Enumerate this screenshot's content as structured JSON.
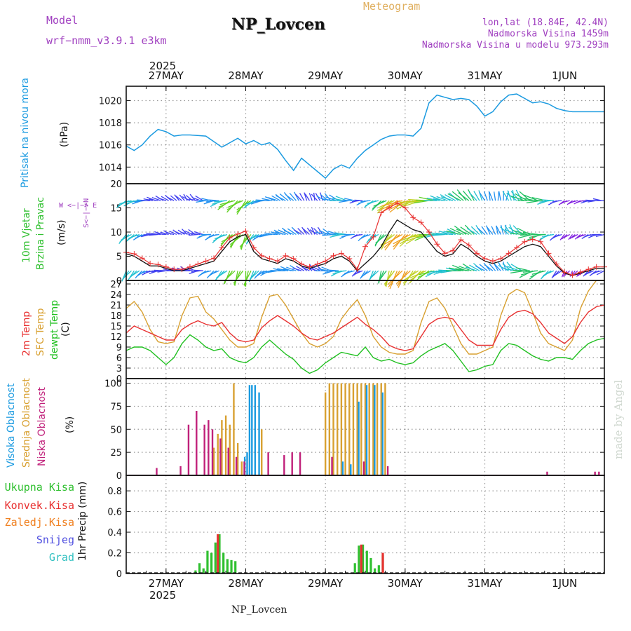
{
  "header": {
    "model_label": "Model",
    "model_value": "wrf−nmm_v3.9.1  e3km",
    "title": "NP_Lovcen",
    "subtitle": "Meteogram",
    "lonlat": "lon,lat (18.84E, 42.4N)",
    "altitude": "Nadmorska Visina 1459m",
    "model_altitude": "Nadmorska Visina u modelu 973.293m",
    "year_top": "2025",
    "year_bottom": "2025",
    "footer_name": "NP_Lovcen",
    "watermark": "made by Angel"
  },
  "colors": {
    "pressure": "#1a9ae0",
    "t2m": "#e83030",
    "sfc": "#d8a030",
    "dewpt": "#20c020",
    "high_cloud": "#1a9ae0",
    "mid_cloud": "#d8a030",
    "low_cloud": "#c0207a",
    "total_precip": "#30c030",
    "conv_precip": "#e83030",
    "frozen_precip": "#f08020",
    "snow": "#5050e0",
    "graupel": "#30c0c0",
    "purple_text": "#a040c0",
    "gold_text": "#e0b060"
  },
  "panel_labels": {
    "pressure": {
      "name": "Pritisak na nivou mora",
      "unit": "(hPa)"
    },
    "wind": {
      "name1": "10m Vjetar",
      "name2": "Brzina i Pravac",
      "unit": "(m/s)",
      "compass": "W <−|−> E",
      "compass_ns": "S<−|−>N"
    },
    "temp": {
      "t2m": "2m Temp",
      "sfc": "SFC Temp",
      "dew": "dewpt Temp",
      "unit": "(C)"
    },
    "cloud": {
      "high": "Visoka Oblacnost",
      "mid": "Srednja Oblacnost",
      "low": "Niska Oblacnost",
      "unit": "(%)"
    },
    "precip": {
      "total": "Ukupna Kisa",
      "conv": "Konvek.Kisa",
      "frozen": "Zaledj.Kisa",
      "snow": "Snijeg",
      "graupel": "Grad",
      "unit": "1hr Precip (mm)"
    }
  },
  "chart_data": {
    "type": "meteogram",
    "time_axis": {
      "start_day_offset": -0.5,
      "end_day_offset": 5.5,
      "day_labels": [
        "27MAY",
        "28MAY",
        "29MAY",
        "30MAY",
        "31MAY",
        "1JUN"
      ]
    },
    "pressure": {
      "ylabel": "hPa",
      "ylim": [
        1012.5,
        1021.3
      ],
      "ticks": [
        1014,
        1016,
        1018,
        1020
      ],
      "t": [
        -0.5,
        -0.4,
        -0.3,
        -0.2,
        -0.1,
        0.0,
        0.1,
        0.2,
        0.3,
        0.5,
        0.7,
        0.9,
        1.0,
        1.1,
        1.2,
        1.3,
        1.4,
        1.5,
        1.6,
        1.7,
        1.8,
        1.9,
        2.0,
        2.1,
        2.2,
        2.3,
        2.4,
        2.5,
        2.6,
        2.7,
        2.8,
        2.9,
        3.0,
        3.1,
        3.2,
        3.3,
        3.4,
        3.5,
        3.6,
        3.7,
        3.8,
        3.9,
        4.0,
        4.1,
        4.2,
        4.3,
        4.4,
        4.5,
        4.6,
        4.7,
        4.8,
        4.9,
        5.0,
        5.1,
        5.2,
        5.3,
        5.4,
        5.5
      ],
      "v": [
        1015.9,
        1015.5,
        1016.0,
        1016.8,
        1017.4,
        1017.2,
        1016.8,
        1016.9,
        1016.9,
        1016.8,
        1015.8,
        1016.6,
        1016.1,
        1016.4,
        1016.0,
        1016.2,
        1015.6,
        1014.6,
        1013.7,
        1014.8,
        1014.2,
        1013.6,
        1013.0,
        1013.8,
        1014.2,
        1013.9,
        1014.8,
        1015.5,
        1016.0,
        1016.5,
        1016.8,
        1016.9,
        1016.9,
        1016.8,
        1017.5,
        1019.8,
        1020.5,
        1020.3,
        1020.1,
        1020.2,
        1020.1,
        1019.5,
        1018.6,
        1019.0,
        1019.9,
        1020.5,
        1020.6,
        1020.2,
        1019.8,
        1019.9,
        1019.7,
        1019.3,
        1019.1,
        1019.0,
        1019.0,
        1019.0,
        1019.0,
        1019.0
      ]
    },
    "wind": {
      "ylabel": "m/s",
      "ylim": [
        0,
        20
      ],
      "ticks": [
        0,
        5,
        10,
        15,
        20
      ],
      "t": [
        -0.5,
        -0.4,
        -0.3,
        -0.2,
        -0.1,
        0.0,
        0.1,
        0.2,
        0.3,
        0.4,
        0.5,
        0.6,
        0.7,
        0.8,
        0.9,
        1.0,
        1.1,
        1.2,
        1.3,
        1.4,
        1.5,
        1.6,
        1.7,
        1.8,
        1.9,
        2.0,
        2.1,
        2.2,
        2.3,
        2.4,
        2.5,
        2.6,
        2.7,
        2.8,
        2.9,
        3.0,
        3.1,
        3.2,
        3.3,
        3.4,
        3.5,
        3.6,
        3.7,
        3.8,
        3.9,
        4.0,
        4.1,
        4.2,
        4.3,
        4.4,
        4.5,
        4.6,
        4.7,
        4.8,
        4.9,
        5.0,
        5.1,
        5.2,
        5.3,
        5.4,
        5.5
      ],
      "speed": [
        5.5,
        5.0,
        4.0,
        3.0,
        3.0,
        2.5,
        2.0,
        2.0,
        2.5,
        3.0,
        3.5,
        4.0,
        6.0,
        8.0,
        9.0,
        9.5,
        6.0,
        4.5,
        4.0,
        3.5,
        4.5,
        4.0,
        3.0,
        2.5,
        3.0,
        3.5,
        4.5,
        5.0,
        4.0,
        2.0,
        3.5,
        5.0,
        7.0,
        10.0,
        12.5,
        11.5,
        10.5,
        10.0,
        8.0,
        6.0,
        5.0,
        5.5,
        7.5,
        6.5,
        5.0,
        4.0,
        3.5,
        4.0,
        5.0,
        6.0,
        7.0,
        7.5,
        7.0,
        5.0,
        3.0,
        1.5,
        1.0,
        1.5,
        2.0,
        2.5,
        2.5
      ],
      "gust": [
        5.8,
        5.5,
        4.6,
        3.5,
        3.3,
        2.8,
        2.3,
        2.3,
        2.8,
        3.4,
        4.0,
        4.6,
        6.8,
        8.8,
        9.6,
        10.2,
        6.8,
        5.1,
        4.5,
        4.0,
        5.1,
        4.5,
        3.4,
        2.8,
        3.4,
        4.0,
        5.1,
        5.6,
        4.5,
        2.3,
        7.0,
        9.0,
        14.0,
        15.0,
        16.0,
        15.0,
        13.0,
        12.0,
        10.0,
        7.5,
        5.6,
        6.2,
        8.4,
        7.3,
        5.6,
        4.5,
        4.0,
        4.5,
        5.6,
        6.8,
        8.0,
        8.5,
        8.0,
        5.6,
        3.4,
        1.7,
        1.1,
        1.7,
        2.3,
        2.8,
        2.8
      ],
      "barb_rows": [
        2,
        9.5,
        16.5
      ],
      "barb_dir_deg": [
        200,
        210,
        220,
        240,
        250,
        260,
        270,
        280,
        270,
        250,
        230,
        220,
        210,
        200,
        190,
        180,
        200,
        220,
        240,
        260,
        270,
        280,
        290,
        300,
        290,
        270,
        250,
        240,
        230,
        220,
        210,
        200,
        190,
        190,
        200,
        200,
        210,
        220,
        230,
        240,
        250,
        260,
        270,
        280,
        290,
        300,
        310,
        320,
        300,
        280,
        260,
        240,
        230,
        220,
        210,
        200,
        200,
        210,
        220,
        230,
        240
      ]
    },
    "temperature": {
      "ylabel": "C",
      "ylim": [
        0,
        28
      ],
      "ticks": [
        0,
        3,
        6,
        9,
        12,
        15,
        18,
        21,
        24,
        27
      ],
      "t": [
        -0.5,
        -0.4,
        -0.3,
        -0.2,
        -0.1,
        0.0,
        0.1,
        0.2,
        0.3,
        0.4,
        0.5,
        0.6,
        0.7,
        0.8,
        0.9,
        1.0,
        1.1,
        1.2,
        1.3,
        1.4,
        1.5,
        1.6,
        1.7,
        1.8,
        1.9,
        2.0,
        2.1,
        2.2,
        2.3,
        2.4,
        2.5,
        2.6,
        2.7,
        2.8,
        2.9,
        3.0,
        3.1,
        3.2,
        3.3,
        3.4,
        3.5,
        3.6,
        3.7,
        3.8,
        3.9,
        4.0,
        4.1,
        4.2,
        4.3,
        4.4,
        4.5,
        4.6,
        4.7,
        4.8,
        4.9,
        5.0,
        5.1,
        5.2,
        5.3,
        5.4,
        5.5
      ],
      "t2m": [
        13.0,
        15.0,
        14.0,
        13.0,
        12.0,
        11.0,
        11.0,
        14.0,
        15.5,
        16.5,
        15.5,
        15.0,
        16.0,
        13.0,
        11.0,
        10.5,
        11.0,
        14.5,
        16.5,
        18.0,
        16.5,
        15.0,
        13.0,
        11.5,
        11.0,
        12.0,
        13.0,
        14.5,
        16.0,
        17.5,
        15.5,
        14.0,
        12.0,
        9.5,
        8.5,
        8.0,
        8.5,
        12.0,
        15.5,
        17.0,
        17.5,
        17.0,
        14.0,
        11.0,
        9.5,
        9.5,
        9.5,
        14.0,
        17.5,
        19.0,
        19.5,
        18.5,
        16.0,
        13.0,
        11.5,
        10.0,
        12.0,
        16.0,
        19.0,
        20.5,
        21.0
      ],
      "sfc": [
        20.0,
        22.0,
        19.0,
        14.0,
        10.5,
        10.0,
        10.5,
        18.0,
        23.0,
        23.5,
        19.0,
        17.0,
        14.0,
        11.0,
        9.0,
        9.0,
        10.0,
        17.5,
        23.5,
        24.0,
        21.0,
        17.0,
        13.0,
        10.0,
        9.0,
        10.0,
        12.0,
        17.0,
        20.0,
        22.5,
        18.0,
        12.0,
        9.0,
        7.5,
        7.0,
        7.0,
        8.0,
        16.0,
        22.0,
        23.0,
        20.0,
        15.0,
        10.0,
        7.0,
        7.0,
        8.0,
        9.0,
        18.0,
        24.0,
        25.5,
        24.5,
        19.0,
        13.0,
        10.0,
        9.0,
        8.0,
        11.0,
        20.0,
        25.0,
        28.0,
        28.0
      ],
      "dew": [
        8.0,
        9.0,
        9.0,
        8.0,
        6.0,
        4.0,
        6.0,
        10.0,
        12.5,
        11.0,
        9.0,
        8.0,
        8.5,
        6.0,
        5.0,
        4.5,
        6.0,
        9.0,
        11.0,
        9.0,
        7.0,
        5.5,
        3.0,
        1.5,
        2.5,
        4.5,
        6.0,
        7.5,
        7.0,
        6.5,
        9.0,
        6.0,
        5.0,
        5.5,
        4.5,
        4.0,
        4.5,
        6.5,
        8.0,
        9.0,
        10.0,
        8.0,
        5.0,
        2.0,
        2.5,
        3.5,
        4.0,
        8.0,
        10.0,
        9.5,
        8.0,
        6.5,
        5.5,
        5.0,
        6.0,
        6.0,
        5.5,
        8.0,
        10.0,
        11.0,
        11.5
      ]
    },
    "cloud_cover": {
      "ylabel": "%",
      "ylim": [
        0,
        105
      ],
      "ticks": [
        0,
        25,
        50,
        75,
        100
      ],
      "high": {
        "t": [
          0.97,
          1.0,
          1.03,
          1.06,
          1.1,
          1.15,
          2.2,
          2.3,
          2.4,
          2.5,
          2.6,
          2.7
        ],
        "v": [
          20,
          25,
          98,
          98,
          98,
          90,
          15,
          12,
          80,
          98,
          98,
          90
        ]
      },
      "mid": {
        "t": [
          0.6,
          0.65,
          0.7,
          0.75,
          0.8,
          0.85,
          0.9,
          0.95,
          1.2,
          2.0,
          2.05,
          2.1,
          2.15,
          2.2,
          2.25,
          2.3,
          2.35,
          2.4,
          2.45,
          2.5,
          2.55,
          2.6,
          2.65,
          2.7,
          2.75
        ],
        "v": [
          30,
          45,
          60,
          65,
          55,
          100,
          35,
          15,
          50,
          90,
          100,
          100,
          100,
          100,
          100,
          100,
          100,
          100,
          100,
          100,
          100,
          100,
          100,
          100,
          100
        ]
      },
      "low": {
        "t": [
          -0.1,
          0.2,
          0.3,
          0.4,
          0.5,
          0.55,
          0.6,
          0.7,
          0.8,
          0.9,
          1.0,
          1.3,
          1.5,
          1.6,
          1.7,
          2.1,
          2.5,
          2.8,
          4.8,
          5.4,
          5.45
        ],
        "v": [
          8,
          10,
          55,
          70,
          55,
          60,
          50,
          40,
          30,
          20,
          15,
          25,
          22,
          25,
          25,
          20,
          15,
          10,
          4,
          4,
          4
        ]
      }
    },
    "precipitation": {
      "ylabel": "1hr Precip (mm)",
      "ylim": [
        0,
        0.95
      ],
      "ticks": [
        0,
        0.2,
        0.4,
        0.6,
        0.8
      ],
      "total": {
        "t": [
          0.37,
          0.42,
          0.47,
          0.52,
          0.57,
          0.62,
          0.67,
          0.72,
          0.77,
          0.82,
          0.87,
          2.37,
          2.42,
          2.47,
          2.52,
          2.57,
          2.62,
          2.67,
          2.72
        ],
        "v": [
          0.03,
          0.1,
          0.05,
          0.22,
          0.2,
          0.3,
          0.38,
          0.2,
          0.14,
          0.13,
          0.12,
          0.1,
          0.27,
          0.28,
          0.22,
          0.15,
          0.05,
          0.08,
          0.18
        ]
      },
      "conv": {
        "t": [
          0.65,
          2.45,
          2.72
        ],
        "v": [
          0.38,
          0.28,
          0.2
        ]
      },
      "frozen": {
        "t": [],
        "v": []
      },
      "snow": {
        "t": [],
        "v": []
      },
      "graupel": {
        "t": [],
        "v": []
      }
    }
  }
}
